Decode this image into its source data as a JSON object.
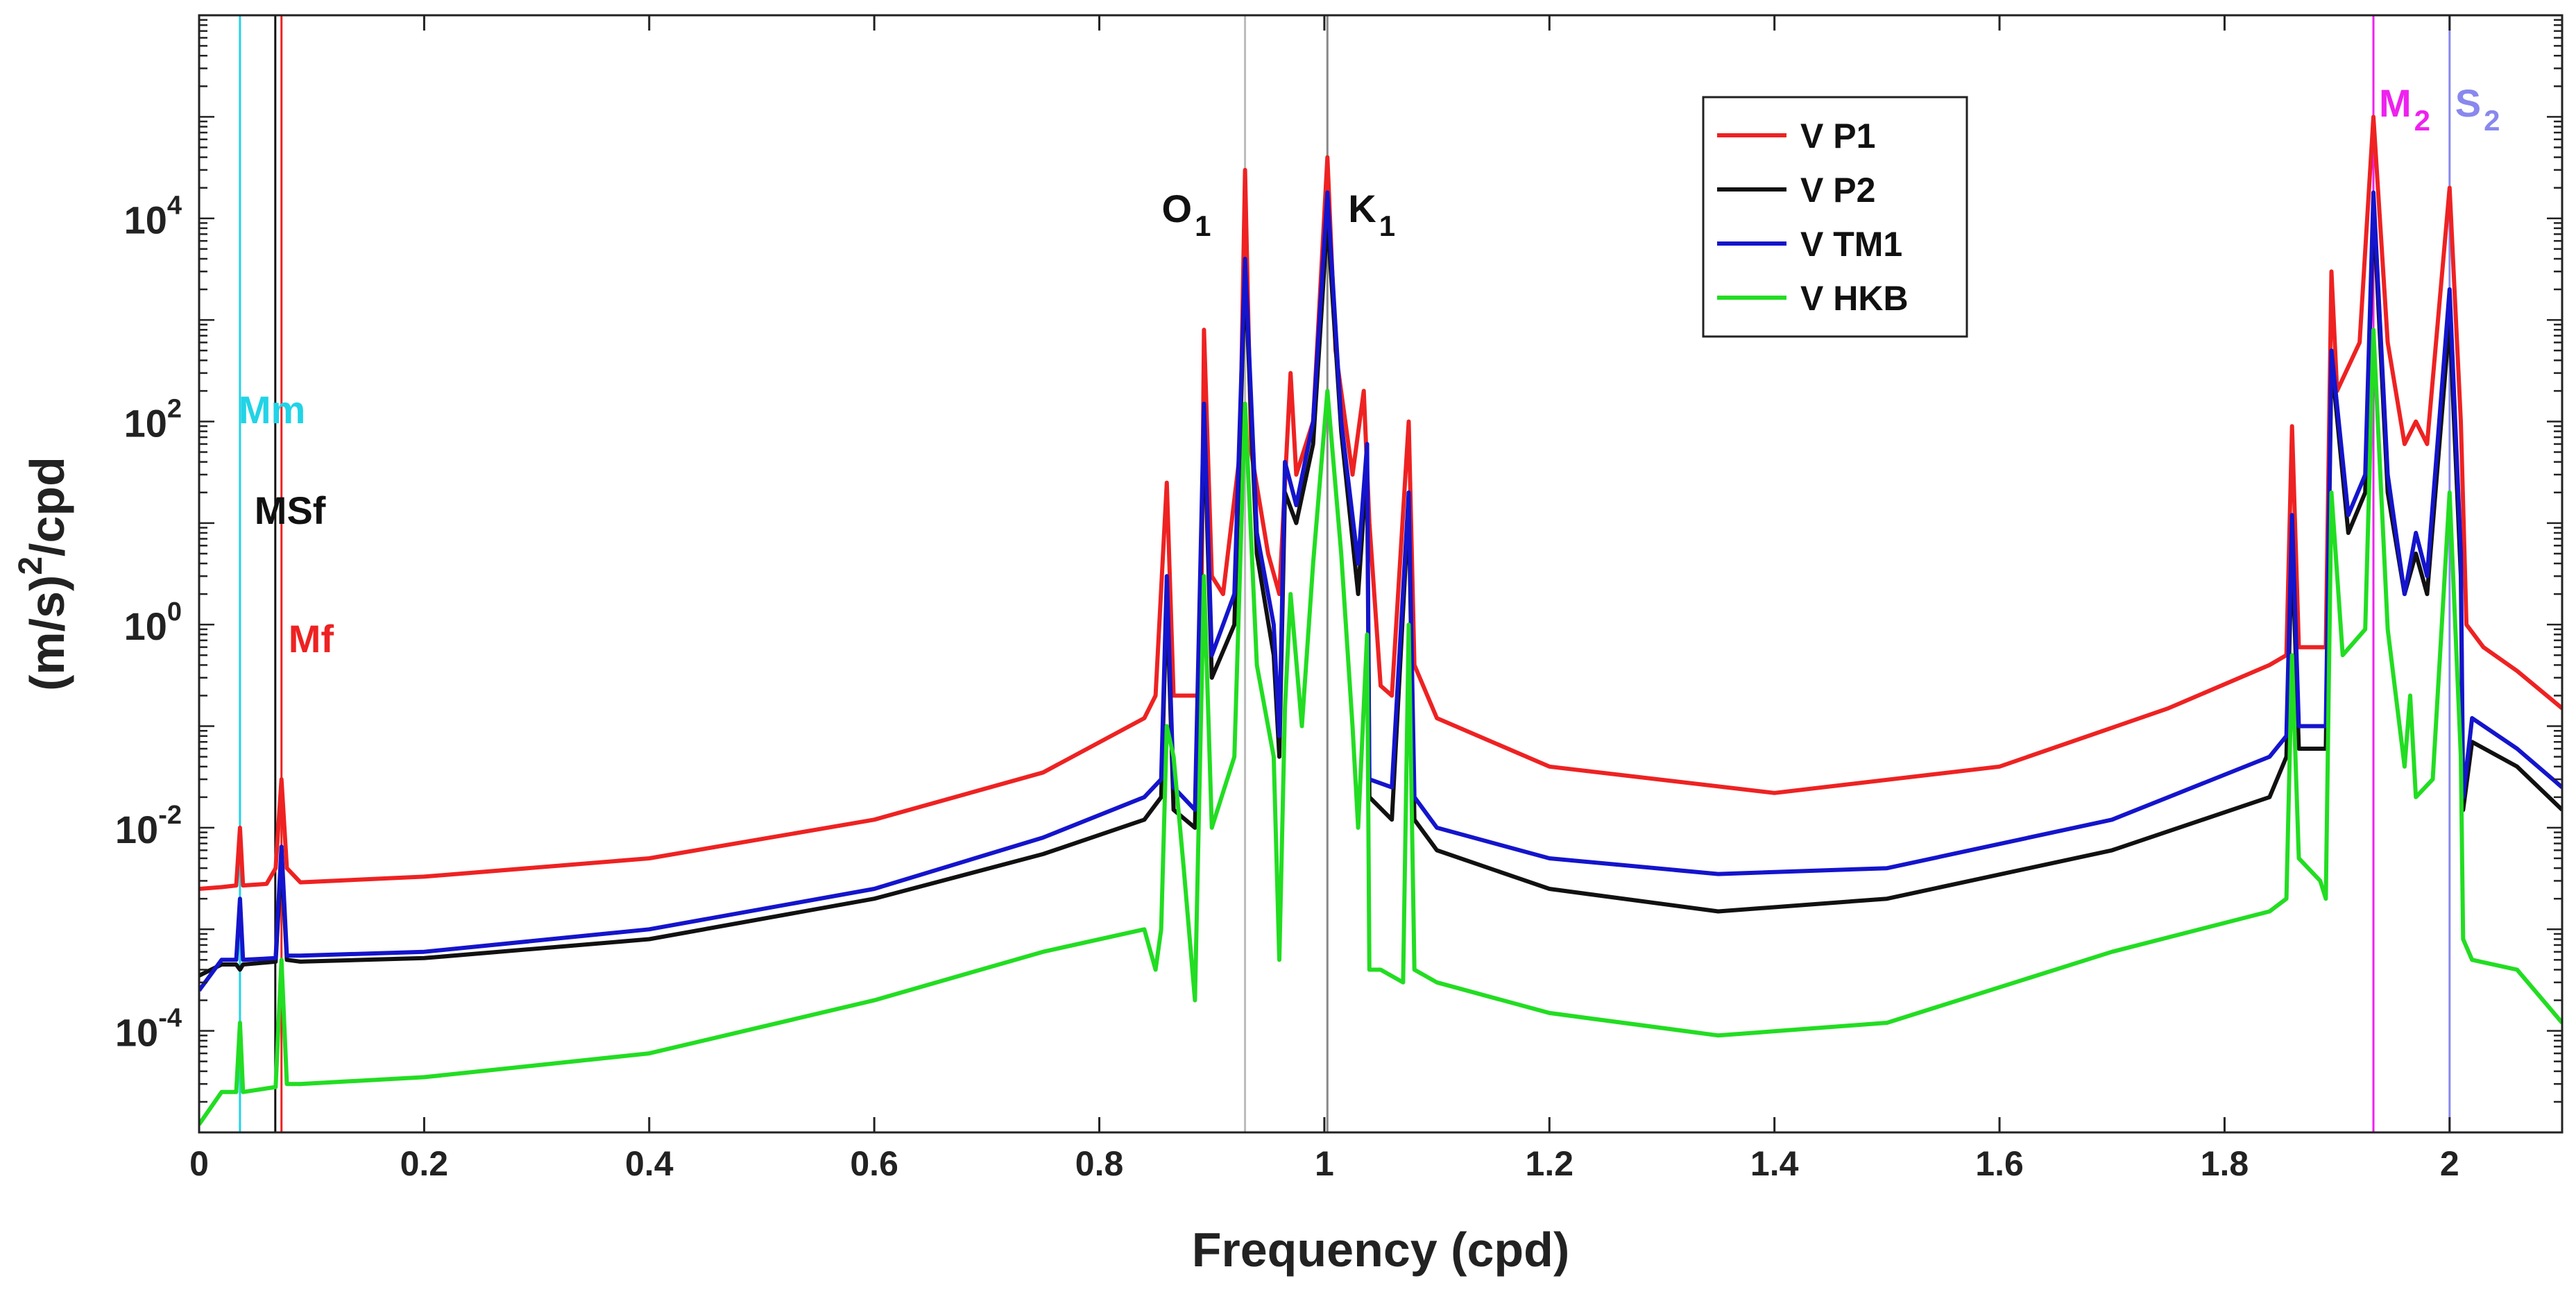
{
  "chart_data": {
    "type": "line",
    "title": "",
    "xlabel": "Frequency (cpd)",
    "ylabel_main": "(m/s)",
    "ylabel_sup": "2",
    "ylabel_tail": "/cpd",
    "y_scale": "log",
    "xlim": [
      0,
      2.1
    ],
    "ylim": [
      1e-05,
      1000000.0
    ],
    "x_ticks": [
      0,
      0.2,
      0.4,
      0.6,
      0.8,
      1,
      1.2,
      1.4,
      1.6,
      1.8,
      2
    ],
    "x_tick_labels": [
      "0",
      "0.2",
      "0.4",
      "0.6",
      "0.8",
      "1",
      "1.2",
      "1.4",
      "1.6",
      "1.8",
      "2"
    ],
    "y_ticks": [
      {
        "value": 0.0001,
        "base": "10",
        "exp": "-4"
      },
      {
        "value": 0.01,
        "base": "10",
        "exp": "-2"
      },
      {
        "value": 1,
        "base": "10",
        "exp": "0"
      },
      {
        "value": 100,
        "base": "10",
        "exp": "2"
      },
      {
        "value": 10000,
        "base": "10",
        "exp": "4"
      }
    ],
    "legend": {
      "position": "top-right"
    },
    "constituents": [
      {
        "name": "Mm",
        "base": "Mm",
        "sub": "",
        "freq": 0.0363,
        "color": "#22d3e6",
        "label_pos": "left-mid"
      },
      {
        "name": "MSf",
        "base": "MSf",
        "sub": "",
        "freq": 0.0677,
        "color": "#111111",
        "label_pos": "left-mid"
      },
      {
        "name": "Mf",
        "base": "Mf",
        "sub": "",
        "freq": 0.0732,
        "color": "#ee2222",
        "label_pos": "left-mid"
      },
      {
        "name": "O1",
        "base": "O",
        "sub": "1",
        "freq": 0.9295,
        "color": "#bbbbbb",
        "label_pos": "top"
      },
      {
        "name": "K1",
        "base": "K",
        "sub": "1",
        "freq": 1.0027,
        "color": "#888888",
        "label_pos": "top"
      },
      {
        "name": "M2",
        "base": "M",
        "sub": "2",
        "freq": 1.9323,
        "color": "#ee22ee",
        "label_pos": "top"
      },
      {
        "name": "S2",
        "base": "S",
        "sub": "2",
        "freq": 2.0,
        "color": "#8888ee",
        "label_pos": "top"
      }
    ],
    "series": [
      {
        "name": "V P1",
        "color": "#ee2222",
        "points": [
          [
            0,
            0.0025
          ],
          [
            0.02,
            0.0026
          ],
          [
            0.033,
            0.0027
          ],
          [
            0.0363,
            0.01
          ],
          [
            0.039,
            0.0027
          ],
          [
            0.06,
            0.0028
          ],
          [
            0.068,
            0.004
          ],
          [
            0.0732,
            0.03
          ],
          [
            0.078,
            0.004
          ],
          [
            0.09,
            0.0029
          ],
          [
            0.2,
            0.0033
          ],
          [
            0.4,
            0.005
          ],
          [
            0.6,
            0.012
          ],
          [
            0.75,
            0.035
          ],
          [
            0.84,
            0.12
          ],
          [
            0.85,
            0.2
          ],
          [
            0.86,
            25
          ],
          [
            0.866,
            0.2
          ],
          [
            0.89,
            0.2
          ],
          [
            0.893,
            800
          ],
          [
            0.9,
            3
          ],
          [
            0.91,
            2
          ],
          [
            0.925,
            50
          ],
          [
            0.9295,
            30000
          ],
          [
            0.935,
            50
          ],
          [
            0.95,
            5
          ],
          [
            0.96,
            2
          ],
          [
            0.97,
            300
          ],
          [
            0.975,
            30
          ],
          [
            0.99,
            100
          ],
          [
            1.0027,
            40000
          ],
          [
            1.01,
            500
          ],
          [
            1.025,
            30
          ],
          [
            1.035,
            200
          ],
          [
            1.04,
            10
          ],
          [
            1.05,
            0.25
          ],
          [
            1.06,
            0.2
          ],
          [
            1.075,
            100
          ],
          [
            1.08,
            0.4
          ],
          [
            1.1,
            0.12
          ],
          [
            1.2,
            0.04
          ],
          [
            1.4,
            0.022
          ],
          [
            1.6,
            0.04
          ],
          [
            1.75,
            0.15
          ],
          [
            1.84,
            0.4
          ],
          [
            1.855,
            0.5
          ],
          [
            1.86,
            90
          ],
          [
            1.866,
            0.6
          ],
          [
            1.89,
            0.6
          ],
          [
            1.895,
            3000
          ],
          [
            1.9,
            200
          ],
          [
            1.92,
            600
          ],
          [
            1.9323,
            100000
          ],
          [
            1.945,
            600
          ],
          [
            1.96,
            60
          ],
          [
            1.97,
            100
          ],
          [
            1.98,
            60
          ],
          [
            2.0,
            20000
          ],
          [
            2.01,
            100
          ],
          [
            2.015,
            1
          ],
          [
            2.03,
            0.6
          ],
          [
            2.06,
            0.35
          ],
          [
            2.1,
            0.15
          ]
        ]
      },
      {
        "name": "V P2",
        "color": "#111111",
        "points": [
          [
            0,
            0.00035
          ],
          [
            0.02,
            0.00045
          ],
          [
            0.033,
            0.00045
          ],
          [
            0.0363,
            0.0004
          ],
          [
            0.039,
            0.00045
          ],
          [
            0.068,
            0.00048
          ],
          [
            0.0732,
            0.005
          ],
          [
            0.078,
            0.0005
          ],
          [
            0.09,
            0.00048
          ],
          [
            0.2,
            0.00052
          ],
          [
            0.4,
            0.0008
          ],
          [
            0.6,
            0.002
          ],
          [
            0.75,
            0.0055
          ],
          [
            0.84,
            0.012
          ],
          [
            0.855,
            0.02
          ],
          [
            0.86,
            2
          ],
          [
            0.866,
            0.015
          ],
          [
            0.885,
            0.01
          ],
          [
            0.893,
            100
          ],
          [
            0.9,
            0.3
          ],
          [
            0.92,
            1
          ],
          [
            0.9295,
            3000
          ],
          [
            0.94,
            5
          ],
          [
            0.955,
            0.5
          ],
          [
            0.96,
            0.05
          ],
          [
            0.965,
            20
          ],
          [
            0.975,
            10
          ],
          [
            0.99,
            60
          ],
          [
            1.0027,
            10000
          ],
          [
            1.015,
            80
          ],
          [
            1.03,
            2
          ],
          [
            1.038,
            40
          ],
          [
            1.04,
            0.02
          ],
          [
            1.06,
            0.012
          ],
          [
            1.075,
            15
          ],
          [
            1.08,
            0.012
          ],
          [
            1.1,
            0.006
          ],
          [
            1.2,
            0.0025
          ],
          [
            1.35,
            0.0015
          ],
          [
            1.5,
            0.002
          ],
          [
            1.7,
            0.006
          ],
          [
            1.84,
            0.02
          ],
          [
            1.855,
            0.05
          ],
          [
            1.86,
            6
          ],
          [
            1.866,
            0.06
          ],
          [
            1.89,
            0.06
          ],
          [
            1.895,
            400
          ],
          [
            1.91,
            8
          ],
          [
            1.925,
            20
          ],
          [
            1.9323,
            13000
          ],
          [
            1.945,
            20
          ],
          [
            1.96,
            2
          ],
          [
            1.97,
            5
          ],
          [
            1.98,
            2
          ],
          [
            2.0,
            1000
          ],
          [
            2.01,
            3
          ],
          [
            2.012,
            0.015
          ],
          [
            2.02,
            0.07
          ],
          [
            2.06,
            0.04
          ],
          [
            2.1,
            0.015
          ]
        ]
      },
      {
        "name": "V TM1",
        "color": "#1414cc",
        "points": [
          [
            0,
            0.00025
          ],
          [
            0.02,
            0.0005
          ],
          [
            0.033,
            0.0005
          ],
          [
            0.0363,
            0.002
          ],
          [
            0.039,
            0.0005
          ],
          [
            0.068,
            0.00052
          ],
          [
            0.0732,
            0.0065
          ],
          [
            0.078,
            0.00055
          ],
          [
            0.09,
            0.00055
          ],
          [
            0.2,
            0.0006
          ],
          [
            0.4,
            0.001
          ],
          [
            0.6,
            0.0025
          ],
          [
            0.75,
            0.008
          ],
          [
            0.84,
            0.02
          ],
          [
            0.855,
            0.03
          ],
          [
            0.86,
            3
          ],
          [
            0.866,
            0.025
          ],
          [
            0.885,
            0.015
          ],
          [
            0.893,
            150
          ],
          [
            0.9,
            0.5
          ],
          [
            0.92,
            2
          ],
          [
            0.9295,
            4000
          ],
          [
            0.94,
            8
          ],
          [
            0.955,
            1
          ],
          [
            0.96,
            0.08
          ],
          [
            0.965,
            40
          ],
          [
            0.975,
            15
          ],
          [
            0.99,
            100
          ],
          [
            1.0027,
            18000
          ],
          [
            1.015,
            100
          ],
          [
            1.03,
            4
          ],
          [
            1.038,
            60
          ],
          [
            1.04,
            0.03
          ],
          [
            1.06,
            0.025
          ],
          [
            1.075,
            20
          ],
          [
            1.08,
            0.02
          ],
          [
            1.1,
            0.01
          ],
          [
            1.2,
            0.005
          ],
          [
            1.35,
            0.0035
          ],
          [
            1.5,
            0.004
          ],
          [
            1.7,
            0.012
          ],
          [
            1.84,
            0.05
          ],
          [
            1.855,
            0.08
          ],
          [
            1.86,
            12
          ],
          [
            1.866,
            0.1
          ],
          [
            1.89,
            0.1
          ],
          [
            1.895,
            500
          ],
          [
            1.91,
            12
          ],
          [
            1.925,
            30
          ],
          [
            1.9323,
            18000
          ],
          [
            1.945,
            30
          ],
          [
            1.96,
            2
          ],
          [
            1.97,
            8
          ],
          [
            1.98,
            3
          ],
          [
            2.0,
            2000
          ],
          [
            2.01,
            5
          ],
          [
            2.012,
            0.02
          ],
          [
            2.02,
            0.12
          ],
          [
            2.06,
            0.06
          ],
          [
            2.1,
            0.025
          ]
        ]
      },
      {
        "name": "V HKB",
        "color": "#22dd22",
        "points": [
          [
            0,
            1.2e-05
          ],
          [
            0.02,
            2.5e-05
          ],
          [
            0.033,
            2.5e-05
          ],
          [
            0.0363,
            0.00012
          ],
          [
            0.039,
            2.5e-05
          ],
          [
            0.068,
            2.8e-05
          ],
          [
            0.0732,
            0.0005
          ],
          [
            0.078,
            3e-05
          ],
          [
            0.09,
            3e-05
          ],
          [
            0.2,
            3.5e-05
          ],
          [
            0.4,
            6e-05
          ],
          [
            0.6,
            0.0002
          ],
          [
            0.75,
            0.0006
          ],
          [
            0.84,
            0.001
          ],
          [
            0.85,
            0.0004
          ],
          [
            0.855,
            0.001
          ],
          [
            0.86,
            0.1
          ],
          [
            0.866,
            0.05
          ],
          [
            0.875,
            0.004
          ],
          [
            0.885,
            0.0002
          ],
          [
            0.893,
            3
          ],
          [
            0.9,
            0.01
          ],
          [
            0.92,
            0.05
          ],
          [
            0.9295,
            150
          ],
          [
            0.94,
            0.4
          ],
          [
            0.955,
            0.05
          ],
          [
            0.96,
            0.0005
          ],
          [
            0.965,
            0.15
          ],
          [
            0.97,
            2
          ],
          [
            0.98,
            0.1
          ],
          [
            0.99,
            4
          ],
          [
            1.0027,
            200
          ],
          [
            1.015,
            5
          ],
          [
            1.025,
            0.1
          ],
          [
            1.03,
            0.01
          ],
          [
            1.038,
            0.8
          ],
          [
            1.04,
            0.0004
          ],
          [
            1.05,
            0.0004
          ],
          [
            1.07,
            0.0003
          ],
          [
            1.075,
            1
          ],
          [
            1.08,
            0.0004
          ],
          [
            1.1,
            0.0003
          ],
          [
            1.2,
            0.00015
          ],
          [
            1.35,
            9e-05
          ],
          [
            1.5,
            0.00012
          ],
          [
            1.7,
            0.0006
          ],
          [
            1.84,
            0.0015
          ],
          [
            1.855,
            0.002
          ],
          [
            1.86,
            0.5
          ],
          [
            1.866,
            0.005
          ],
          [
            1.885,
            0.003
          ],
          [
            1.89,
            0.002
          ],
          [
            1.895,
            20
          ],
          [
            1.905,
            0.5
          ],
          [
            1.925,
            0.9
          ],
          [
            1.9323,
            800
          ],
          [
            1.945,
            0.9
          ],
          [
            1.96,
            0.04
          ],
          [
            1.965,
            0.2
          ],
          [
            1.97,
            0.02
          ],
          [
            1.985,
            0.03
          ],
          [
            2.0,
            20
          ],
          [
            2.01,
            0.05
          ],
          [
            2.012,
            0.0008
          ],
          [
            2.02,
            0.0005
          ],
          [
            2.06,
            0.0004
          ],
          [
            2.1,
            0.00012
          ]
        ]
      }
    ]
  }
}
